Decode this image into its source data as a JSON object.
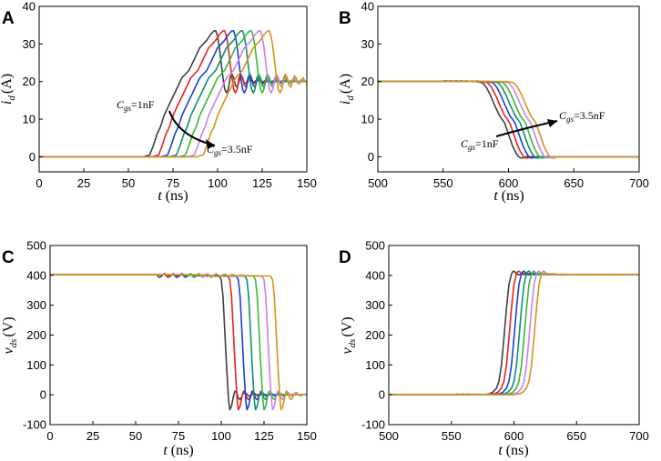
{
  "colors": {
    "series": [
      "#404040",
      "#e8231f",
      "#1a3ee0",
      "#0f8f6f",
      "#33bb33",
      "#d080e8",
      "#d89218"
    ],
    "axis": "#000000",
    "arrow": "#000000"
  },
  "chart_data": [
    {
      "id": "A",
      "letter": "A",
      "type": "line",
      "xlabel_italic": "t",
      "xlabel_unit": " (ns)",
      "ylabel_main": "i",
      "ylabel_sub": "d",
      "ylabel_unit": "(A)",
      "xlim": [
        0,
        150
      ],
      "ylim": [
        -4,
        40
      ],
      "xticks": [
        0,
        25,
        50,
        75,
        100,
        125,
        150
      ],
      "yticks": [
        0,
        10,
        20,
        30,
        40
      ],
      "annotation_start": {
        "c": "C",
        "sub": "gs",
        "value": "=1nF"
      },
      "annotation_end": {
        "c": "C",
        "sub": "gs",
        "value": "=3.5nF"
      },
      "series_delays": [
        0,
        5,
        10,
        15,
        20,
        25,
        30
      ],
      "base_curve": [
        [
          0,
          0
        ],
        [
          58,
          0
        ],
        [
          62,
          0.5
        ],
        [
          64,
          3
        ],
        [
          66,
          6
        ],
        [
          68,
          8
        ],
        [
          70,
          11
        ],
        [
          72,
          13
        ],
        [
          74,
          15
        ],
        [
          76,
          17
        ],
        [
          78,
          19
        ],
        [
          80,
          21
        ],
        [
          82,
          22
        ],
        [
          84,
          23
        ],
        [
          86,
          25
        ],
        [
          88,
          27
        ],
        [
          90,
          29
        ],
        [
          92,
          30
        ],
        [
          94,
          31
        ],
        [
          96,
          32.5
        ],
        [
          98,
          33.5
        ],
        [
          99,
          33.5
        ],
        [
          100,
          32
        ],
        [
          101,
          29
        ],
        [
          102,
          25
        ],
        [
          103,
          21
        ],
        [
          104,
          18
        ],
        [
          105,
          17
        ],
        [
          106,
          18
        ],
        [
          107,
          21
        ],
        [
          108,
          22
        ],
        [
          109,
          21
        ],
        [
          110,
          19
        ],
        [
          111,
          18.5
        ],
        [
          112,
          20
        ],
        [
          113,
          21.5
        ],
        [
          114,
          21
        ],
        [
          115,
          19.5
        ],
        [
          116,
          19.5
        ],
        [
          117,
          20.5
        ],
        [
          118,
          21
        ],
        [
          119,
          20
        ],
        [
          120,
          19.7
        ],
        [
          122,
          20.5
        ],
        [
          124,
          20
        ],
        [
          150,
          20
        ]
      ]
    },
    {
      "id": "B",
      "letter": "B",
      "type": "line",
      "xlabel_italic": "t",
      "xlabel_unit": " (ns)",
      "ylabel_main": "i",
      "ylabel_sub": "d",
      "ylabel_unit": "(A)",
      "xlim": [
        500,
        700
      ],
      "ylim": [
        -4,
        40
      ],
      "xticks": [
        500,
        550,
        600,
        650,
        700
      ],
      "yticks": [
        0,
        10,
        20,
        30,
        40
      ],
      "annotation_start": {
        "c": "C",
        "sub": "gs",
        "value": "=1nF"
      },
      "annotation_end": {
        "c": "C",
        "sub": "gs",
        "value": "=3.5nF"
      },
      "series_delays": [
        0,
        4,
        8,
        12,
        16,
        20,
        24
      ],
      "base_curve": [
        [
          500,
          20
        ],
        [
          548,
          20
        ],
        [
          552,
          20.2
        ],
        [
          556,
          20
        ],
        [
          575,
          20
        ],
        [
          580,
          19.7
        ],
        [
          583,
          18.5
        ],
        [
          586,
          16.5
        ],
        [
          589,
          14
        ],
        [
          591,
          12.5
        ],
        [
          593,
          11
        ],
        [
          595,
          10
        ],
        [
          597,
          9
        ],
        [
          599,
          7
        ],
        [
          601,
          5
        ],
        [
          603,
          3
        ],
        [
          605,
          1.5
        ],
        [
          607,
          0.3
        ],
        [
          609,
          -0.3
        ],
        [
          611,
          -0.3
        ],
        [
          613,
          0
        ],
        [
          615,
          0.1
        ],
        [
          617,
          0
        ],
        [
          700,
          0
        ]
      ]
    },
    {
      "id": "C",
      "letter": "C",
      "type": "line",
      "xlabel_italic": "t",
      "xlabel_unit": " (ns)",
      "ylabel_main": "v",
      "ylabel_sub": "ds",
      "ylabel_unit": "(V)",
      "xlim": [
        0,
        150
      ],
      "ylim": [
        -100,
        500
      ],
      "xticks": [
        0,
        25,
        50,
        75,
        100,
        125,
        150
      ],
      "yticks": [
        -100,
        0,
        100,
        200,
        300,
        400,
        500
      ],
      "series_delays": [
        0,
        5,
        10,
        15,
        20,
        25,
        30
      ],
      "base_curve": [
        [
          0,
          402
        ],
        [
          62,
          402
        ],
        [
          63,
          398
        ],
        [
          64,
          393
        ],
        [
          65,
          397
        ],
        [
          66,
          402
        ],
        [
          67,
          406
        ],
        [
          68,
          402
        ],
        [
          69,
          397
        ],
        [
          70,
          396
        ],
        [
          71,
          400
        ],
        [
          72,
          404
        ],
        [
          73,
          402
        ],
        [
          74,
          398
        ],
        [
          75,
          398
        ],
        [
          76,
          402
        ],
        [
          77,
          403
        ],
        [
          78,
          400
        ],
        [
          79,
          398
        ],
        [
          80,
          399
        ],
        [
          81,
          401
        ],
        [
          82,
          401
        ],
        [
          83,
          400
        ],
        [
          84,
          399
        ],
        [
          86,
          399
        ],
        [
          92,
          398
        ],
        [
          98,
          398
        ],
        [
          99,
          396
        ],
        [
          100,
          385
        ],
        [
          101,
          330
        ],
        [
          102,
          220
        ],
        [
          103,
          110
        ],
        [
          104,
          10
        ],
        [
          104.5,
          -30
        ],
        [
          105,
          -50
        ],
        [
          106,
          -38
        ],
        [
          107,
          -8
        ],
        [
          108,
          12
        ],
        [
          109,
          8
        ],
        [
          110,
          -12
        ],
        [
          111,
          -16
        ],
        [
          112,
          -6
        ],
        [
          113,
          6
        ],
        [
          114,
          8
        ],
        [
          115,
          2
        ],
        [
          116,
          -4
        ],
        [
          117,
          -3
        ],
        [
          118,
          1
        ],
        [
          119,
          2
        ],
        [
          120,
          0
        ],
        [
          150,
          0
        ]
      ]
    },
    {
      "id": "D",
      "letter": "D",
      "type": "line",
      "xlabel_italic": "t",
      "xlabel_unit": " (ns)",
      "ylabel_main": "v",
      "ylabel_sub": "ds",
      "ylabel_unit": "(V)",
      "xlim": [
        500,
        700
      ],
      "ylim": [
        -100,
        500
      ],
      "xticks": [
        500,
        550,
        600,
        650,
        700
      ],
      "yticks": [
        -100,
        0,
        100,
        200,
        300,
        400,
        500
      ],
      "series_delays": [
        0,
        4,
        8,
        12,
        16,
        20,
        24
      ],
      "base_curve": [
        [
          500,
          0
        ],
        [
          550,
          0
        ],
        [
          555,
          2
        ],
        [
          560,
          0
        ],
        [
          575,
          0
        ],
        [
          580,
          3
        ],
        [
          583,
          8
        ],
        [
          586,
          22
        ],
        [
          588,
          45
        ],
        [
          590,
          100
        ],
        [
          592,
          190
        ],
        [
          594,
          290
        ],
        [
          596,
          370
        ],
        [
          598,
          405
        ],
        [
          599,
          412
        ],
        [
          600,
          414
        ],
        [
          601,
          410
        ],
        [
          602,
          406
        ],
        [
          604,
          402
        ],
        [
          606,
          405
        ],
        [
          608,
          406
        ],
        [
          610,
          403
        ],
        [
          612,
          402
        ],
        [
          615,
          404
        ],
        [
          620,
          403
        ],
        [
          625,
          402
        ],
        [
          700,
          402
        ]
      ]
    }
  ]
}
